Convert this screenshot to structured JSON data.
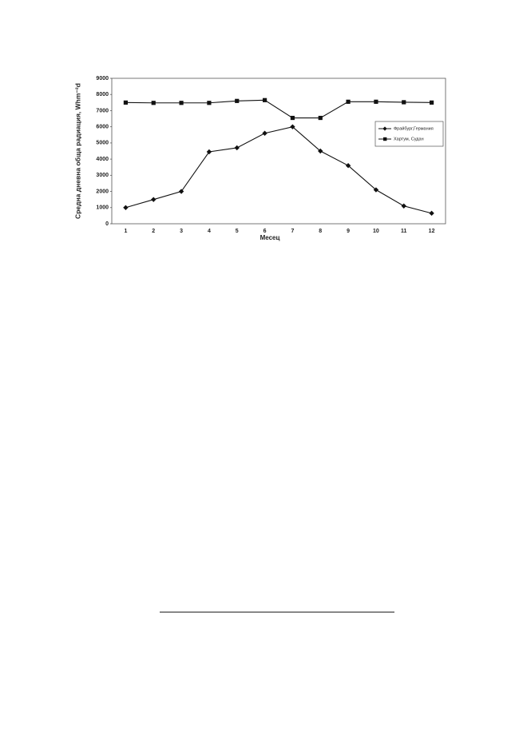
{
  "chart_data": {
    "type": "line",
    "x_label": "Месец",
    "y_label": "Средна дневна обща радиация, Whm⁻²d",
    "categories": [
      "1",
      "2",
      "3",
      "4",
      "5",
      "6",
      "7",
      "8",
      "9",
      "10",
      "11",
      "12"
    ],
    "series": [
      {
        "name": "Фрайбург,Германия",
        "color": "#111111",
        "marker": "diamond",
        "values": [
          1000,
          1500,
          2000,
          4450,
          4700,
          5600,
          6000,
          4500,
          3600,
          2100,
          1100,
          650
        ]
      },
      {
        "name": "Хартум, Судан",
        "color": "#111111",
        "marker": "square",
        "values": [
          7500,
          7480,
          7480,
          7480,
          7600,
          7650,
          6550,
          6550,
          7550,
          7550,
          7520,
          7500
        ]
      }
    ],
    "ylim": [
      0,
      9000
    ],
    "yticks": [
      0,
      1000,
      2000,
      3000,
      4000,
      5000,
      6000,
      7000,
      8000,
      9000
    ],
    "grid": false,
    "legend": "right"
  }
}
